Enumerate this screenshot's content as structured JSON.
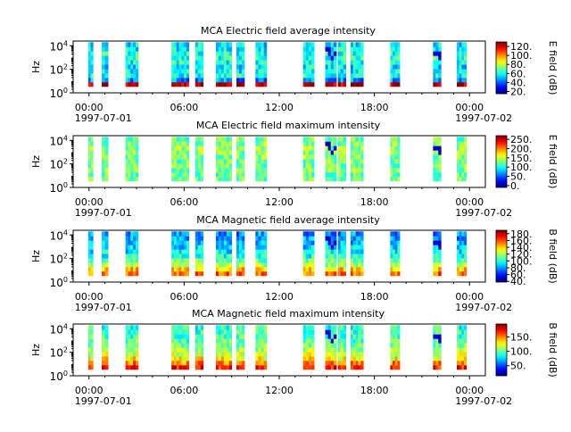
{
  "chart_data": [
    {
      "type": "heatmap",
      "title": "MCA  Electric field average intensity",
      "ylabel": "Hz",
      "colorbar_label": "E field (dB)",
      "ylim_exp": [
        0,
        4.4
      ],
      "colorbar_range": [
        15,
        130
      ],
      "colorbar_ticks": [
        "120.",
        "100.",
        "80.",
        "60.",
        "40.",
        "20."
      ],
      "colorbar_tick_values": [
        120,
        100,
        80,
        60,
        40,
        20
      ],
      "profile": [
        125,
        45,
        60,
        58,
        55,
        60,
        62,
        60,
        58,
        55
      ]
    },
    {
      "type": "heatmap",
      "title": "MCA  Electric field maximum intensity",
      "ylabel": "Hz",
      "colorbar_label": "E field (dB)",
      "ylim_exp": [
        0,
        4.4
      ],
      "colorbar_range": [
        -10,
        270
      ],
      "colorbar_ticks": [
        "250.",
        "200.",
        "150.",
        "100.",
        "50.",
        "0."
      ],
      "colorbar_tick_values": [
        250,
        200,
        150,
        100,
        50,
        0
      ],
      "profile": [
        125,
        122,
        130,
        128,
        125,
        130,
        135,
        138,
        130,
        125
      ]
    },
    {
      "type": "heatmap",
      "title": "MCA  Magnetic field average intensity",
      "ylabel": "Hz",
      "colorbar_label": "B field (dB)",
      "ylim_exp": [
        0,
        4.4
      ],
      "colorbar_range": [
        38,
        190
      ],
      "colorbar_ticks": [
        "180.",
        "160.",
        "140.",
        "120.",
        "100.",
        "80.",
        "60.",
        "40."
      ],
      "colorbar_tick_values": [
        180,
        160,
        140,
        120,
        100,
        80,
        60,
        40
      ],
      "profile": [
        155,
        140,
        120,
        110,
        100,
        92,
        90,
        85,
        80,
        78
      ]
    },
    {
      "type": "heatmap",
      "title": "MCA  Magnetic field maximum intensity",
      "ylabel": "Hz",
      "colorbar_label": "B field (dB)",
      "ylim_exp": [
        0,
        4.4
      ],
      "colorbar_range": [
        15,
        195
      ],
      "colorbar_ticks": [
        "150.",
        "100.",
        "50."
      ],
      "colorbar_tick_values": [
        150,
        100,
        50
      ],
      "profile": [
        170,
        150,
        130,
        118,
        110,
        102,
        98,
        95,
        92,
        90
      ]
    }
  ],
  "shared": {
    "x_range_hours": [
      -1,
      25
    ],
    "x_ticks": [
      {
        "hour": 0,
        "label": "00:00",
        "date": "1997-07-01"
      },
      {
        "hour": 6,
        "label": "06:00",
        "date": ""
      },
      {
        "hour": 12,
        "label": "12:00",
        "date": ""
      },
      {
        "hour": 18,
        "label": "18:00",
        "date": ""
      },
      {
        "hour": 24,
        "label": "00:00",
        "date": "1997-07-02"
      }
    ],
    "y_ticks": [
      {
        "base": "10",
        "exp": "0",
        "value": 0
      },
      {
        "base": "10",
        "exp": "2",
        "value": 2
      },
      {
        "base": "10",
        "exp": "4",
        "value": 4
      }
    ],
    "data_hours": [
      [
        -0.05,
        0.25
      ],
      [
        0.8,
        1.2
      ],
      [
        2.3,
        3.1
      ],
      [
        5.2,
        6.3
      ],
      [
        6.7,
        7.2
      ],
      [
        8.0,
        9.0
      ],
      [
        9.3,
        9.8
      ],
      [
        10.5,
        11.2
      ],
      [
        13.5,
        14.2
      ],
      [
        14.9,
        15.6
      ],
      [
        15.7,
        16.2
      ],
      [
        16.5,
        17.3
      ],
      [
        19.0,
        19.6
      ],
      [
        21.7,
        22.2
      ],
      [
        23.2,
        23.8
      ]
    ],
    "low_segments": [
      [
        14.9,
        15.6
      ],
      [
        21.7,
        22.2
      ]
    ]
  }
}
